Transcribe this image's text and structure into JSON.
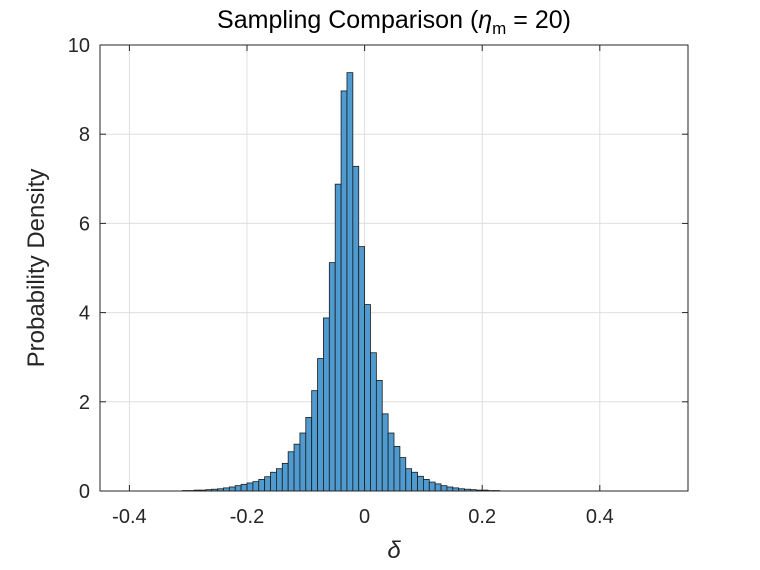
{
  "chart_data": {
    "type": "bar",
    "title": {
      "prefix": "Sampling  Comparison  (",
      "symbol": "η",
      "subscript": "m",
      "suffix": "  =  20)"
    },
    "xlabel": "δ",
    "ylabel": "Probability Density",
    "xlim": [
      -0.45,
      0.55
    ],
    "ylim": [
      0,
      10
    ],
    "xticks": [
      -0.4,
      -0.2,
      0,
      0.2,
      0.4
    ],
    "xtick_labels": [
      "-0.4",
      "-0.2",
      "0",
      "0.2",
      "0.4"
    ],
    "yticks": [
      0,
      2,
      4,
      6,
      8,
      10
    ],
    "ytick_labels": [
      "0",
      "2",
      "4",
      "6",
      "8",
      "10"
    ],
    "grid": true,
    "bar_color": "#4f9bd0",
    "bar_edge_color": "#1a1a1a",
    "bin_width": 0.01,
    "bins": [
      {
        "x0": -0.31,
        "x1": -0.3,
        "y": 0.01
      },
      {
        "x0": -0.3,
        "x1": -0.29,
        "y": 0.01
      },
      {
        "x0": -0.29,
        "x1": -0.28,
        "y": 0.02
      },
      {
        "x0": -0.28,
        "x1": -0.27,
        "y": 0.02
      },
      {
        "x0": -0.27,
        "x1": -0.26,
        "y": 0.03
      },
      {
        "x0": -0.26,
        "x1": -0.25,
        "y": 0.04
      },
      {
        "x0": -0.25,
        "x1": -0.24,
        "y": 0.05
      },
      {
        "x0": -0.24,
        "x1": -0.23,
        "y": 0.07
      },
      {
        "x0": -0.23,
        "x1": -0.22,
        "y": 0.09
      },
      {
        "x0": -0.22,
        "x1": -0.21,
        "y": 0.12
      },
      {
        "x0": -0.21,
        "x1": -0.2,
        "y": 0.15
      },
      {
        "x0": -0.2,
        "x1": -0.19,
        "y": 0.18
      },
      {
        "x0": -0.19,
        "x1": -0.18,
        "y": 0.21
      },
      {
        "x0": -0.18,
        "x1": -0.17,
        "y": 0.26
      },
      {
        "x0": -0.17,
        "x1": -0.16,
        "y": 0.32
      },
      {
        "x0": -0.16,
        "x1": -0.15,
        "y": 0.42
      },
      {
        "x0": -0.15,
        "x1": -0.14,
        "y": 0.5
      },
      {
        "x0": -0.14,
        "x1": -0.13,
        "y": 0.62
      },
      {
        "x0": -0.13,
        "x1": -0.12,
        "y": 0.88
      },
      {
        "x0": -0.12,
        "x1": -0.11,
        "y": 1.05
      },
      {
        "x0": -0.11,
        "x1": -0.1,
        "y": 1.3
      },
      {
        "x0": -0.1,
        "x1": -0.09,
        "y": 1.65
      },
      {
        "x0": -0.09,
        "x1": -0.08,
        "y": 2.25
      },
      {
        "x0": -0.08,
        "x1": -0.07,
        "y": 2.97
      },
      {
        "x0": -0.07,
        "x1": -0.06,
        "y": 3.88
      },
      {
        "x0": -0.06,
        "x1": -0.05,
        "y": 5.12
      },
      {
        "x0": -0.05,
        "x1": -0.04,
        "y": 6.88
      },
      {
        "x0": -0.04,
        "x1": -0.03,
        "y": 8.97
      },
      {
        "x0": -0.03,
        "x1": -0.02,
        "y": 9.38
      },
      {
        "x0": -0.02,
        "x1": -0.01,
        "y": 7.28
      },
      {
        "x0": -0.01,
        "x1": 0.0,
        "y": 5.48
      },
      {
        "x0": 0.0,
        "x1": 0.01,
        "y": 4.18
      },
      {
        "x0": 0.01,
        "x1": 0.02,
        "y": 3.1
      },
      {
        "x0": 0.02,
        "x1": 0.03,
        "y": 2.48
      },
      {
        "x0": 0.03,
        "x1": 0.04,
        "y": 1.73
      },
      {
        "x0": 0.04,
        "x1": 0.05,
        "y": 1.3
      },
      {
        "x0": 0.05,
        "x1": 0.06,
        "y": 1.0
      },
      {
        "x0": 0.06,
        "x1": 0.07,
        "y": 0.75
      },
      {
        "x0": 0.07,
        "x1": 0.08,
        "y": 0.5
      },
      {
        "x0": 0.08,
        "x1": 0.09,
        "y": 0.42
      },
      {
        "x0": 0.09,
        "x1": 0.1,
        "y": 0.33
      },
      {
        "x0": 0.1,
        "x1": 0.11,
        "y": 0.26
      },
      {
        "x0": 0.11,
        "x1": 0.12,
        "y": 0.2
      },
      {
        "x0": 0.12,
        "x1": 0.13,
        "y": 0.16
      },
      {
        "x0": 0.13,
        "x1": 0.14,
        "y": 0.12
      },
      {
        "x0": 0.14,
        "x1": 0.15,
        "y": 0.09
      },
      {
        "x0": 0.15,
        "x1": 0.16,
        "y": 0.07
      },
      {
        "x0": 0.16,
        "x1": 0.17,
        "y": 0.05
      },
      {
        "x0": 0.17,
        "x1": 0.18,
        "y": 0.04
      },
      {
        "x0": 0.18,
        "x1": 0.19,
        "y": 0.03
      },
      {
        "x0": 0.19,
        "x1": 0.2,
        "y": 0.02
      },
      {
        "x0": 0.2,
        "x1": 0.21,
        "y": 0.02
      },
      {
        "x0": 0.21,
        "x1": 0.22,
        "y": 0.01
      },
      {
        "x0": 0.22,
        "x1": 0.23,
        "y": 0.01
      }
    ]
  }
}
